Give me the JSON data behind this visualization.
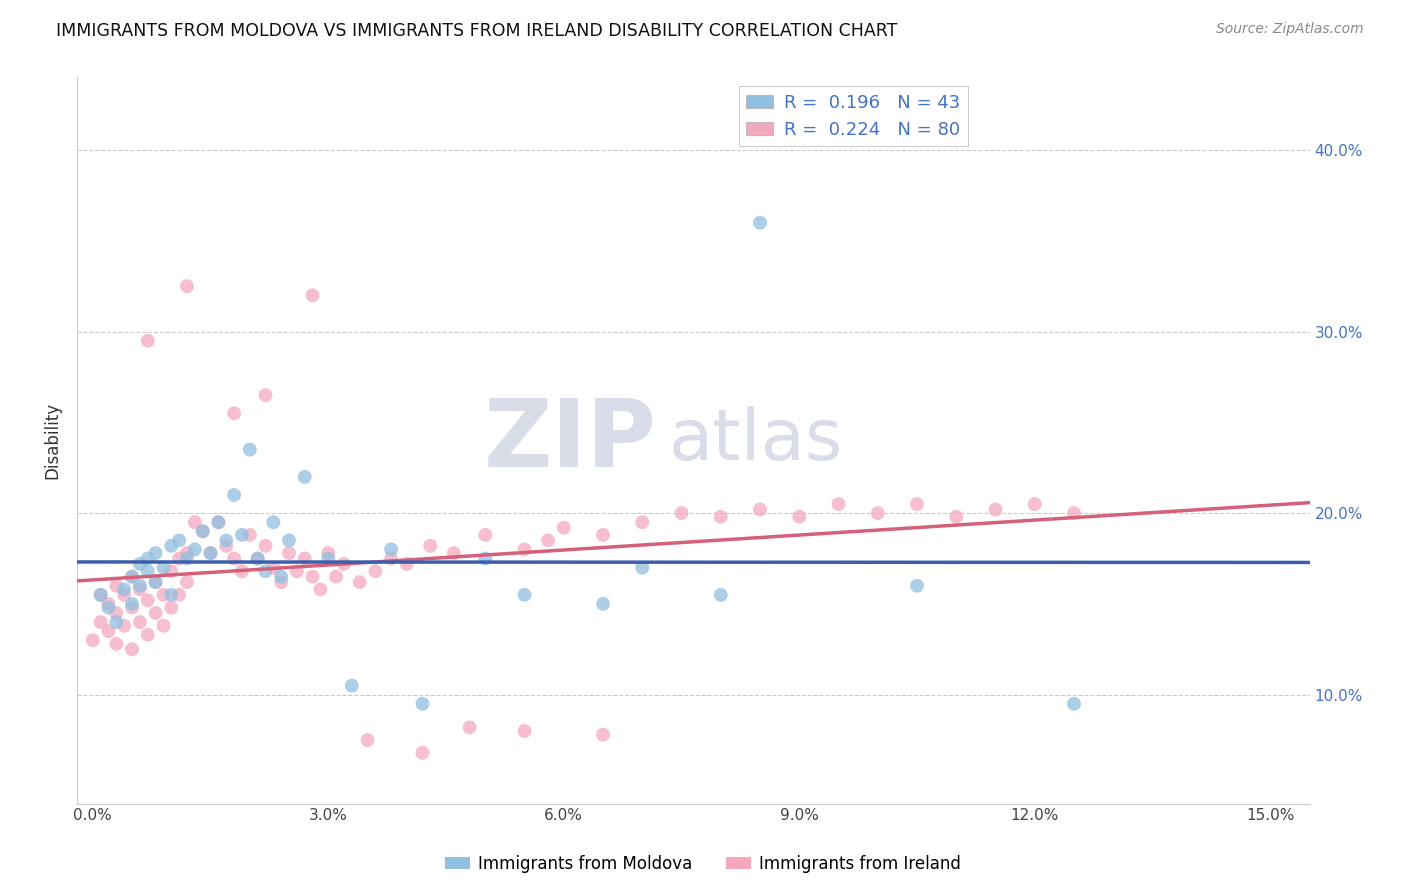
{
  "title": "IMMIGRANTS FROM MOLDOVA VS IMMIGRANTS FROM IRELAND DISABILITY CORRELATION CHART",
  "source": "Source: ZipAtlas.com",
  "xlabel_ticks": [
    "0.0%",
    "3.0%",
    "6.0%",
    "9.0%",
    "12.0%",
    "15.0%"
  ],
  "xlabel_vals": [
    0.0,
    0.03,
    0.06,
    0.09,
    0.12,
    0.15
  ],
  "ylabel_ticks": [
    "10.0%",
    "20.0%",
    "30.0%",
    "40.0%"
  ],
  "ylabel_vals": [
    0.1,
    0.2,
    0.3,
    0.4
  ],
  "xlim": [
    -0.002,
    0.155
  ],
  "ylim": [
    0.04,
    0.44
  ],
  "ylabel": "Disability",
  "moldova_color": "#90bfe0",
  "ireland_color": "#f4a8be",
  "moldova_R": 0.196,
  "moldova_N": 43,
  "ireland_R": 0.224,
  "ireland_N": 80,
  "moldova_line_color": "#3c5fad",
  "ireland_line_color": "#d4607a",
  "watermark_zip": "ZIP",
  "watermark_atlas": "atlas",
  "moldova_x": [
    0.001,
    0.002,
    0.003,
    0.004,
    0.005,
    0.005,
    0.006,
    0.006,
    0.007,
    0.007,
    0.008,
    0.008,
    0.009,
    0.01,
    0.01,
    0.011,
    0.012,
    0.013,
    0.014,
    0.015,
    0.016,
    0.017,
    0.018,
    0.019,
    0.02,
    0.021,
    0.022,
    0.023,
    0.024,
    0.025,
    0.027,
    0.03,
    0.033,
    0.038,
    0.042,
    0.05,
    0.055,
    0.065,
    0.07,
    0.08,
    0.085,
    0.105,
    0.125
  ],
  "moldova_y": [
    0.155,
    0.148,
    0.14,
    0.158,
    0.15,
    0.165,
    0.172,
    0.16,
    0.168,
    0.175,
    0.162,
    0.178,
    0.17,
    0.182,
    0.155,
    0.185,
    0.175,
    0.18,
    0.19,
    0.178,
    0.195,
    0.185,
    0.21,
    0.188,
    0.235,
    0.175,
    0.168,
    0.195,
    0.165,
    0.185,
    0.22,
    0.175,
    0.105,
    0.18,
    0.095,
    0.175,
    0.155,
    0.15,
    0.17,
    0.155,
    0.36,
    0.16,
    0.095
  ],
  "ireland_x": [
    0.0,
    0.001,
    0.001,
    0.002,
    0.002,
    0.003,
    0.003,
    0.003,
    0.004,
    0.004,
    0.005,
    0.005,
    0.005,
    0.006,
    0.006,
    0.007,
    0.007,
    0.008,
    0.008,
    0.009,
    0.009,
    0.01,
    0.01,
    0.011,
    0.011,
    0.012,
    0.012,
    0.013,
    0.014,
    0.015,
    0.016,
    0.017,
    0.018,
    0.019,
    0.02,
    0.021,
    0.022,
    0.023,
    0.024,
    0.025,
    0.026,
    0.027,
    0.028,
    0.029,
    0.03,
    0.031,
    0.032,
    0.034,
    0.036,
    0.038,
    0.04,
    0.043,
    0.046,
    0.05,
    0.055,
    0.058,
    0.06,
    0.065,
    0.07,
    0.075,
    0.08,
    0.085,
    0.09,
    0.095,
    0.1,
    0.105,
    0.11,
    0.115,
    0.12,
    0.125,
    0.007,
    0.012,
    0.018,
    0.022,
    0.028,
    0.035,
    0.042,
    0.048,
    0.055,
    0.065
  ],
  "ireland_y": [
    0.13,
    0.14,
    0.155,
    0.135,
    0.15,
    0.128,
    0.145,
    0.16,
    0.138,
    0.155,
    0.125,
    0.148,
    0.165,
    0.14,
    0.158,
    0.133,
    0.152,
    0.145,
    0.162,
    0.138,
    0.155,
    0.148,
    0.168,
    0.155,
    0.175,
    0.162,
    0.178,
    0.195,
    0.19,
    0.178,
    0.195,
    0.182,
    0.175,
    0.168,
    0.188,
    0.175,
    0.182,
    0.17,
    0.162,
    0.178,
    0.168,
    0.175,
    0.165,
    0.158,
    0.178,
    0.165,
    0.172,
    0.162,
    0.168,
    0.175,
    0.172,
    0.182,
    0.178,
    0.188,
    0.18,
    0.185,
    0.192,
    0.188,
    0.195,
    0.2,
    0.198,
    0.202,
    0.198,
    0.205,
    0.2,
    0.205,
    0.198,
    0.202,
    0.205,
    0.2,
    0.295,
    0.325,
    0.255,
    0.265,
    0.32,
    0.075,
    0.068,
    0.082,
    0.08,
    0.078
  ]
}
